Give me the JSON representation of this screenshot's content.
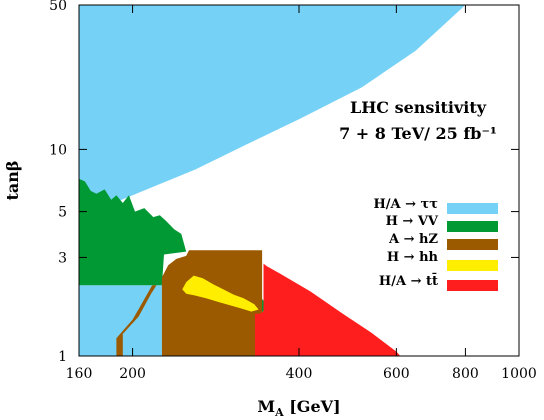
{
  "chart_data": {
    "type": "area",
    "title": "",
    "xlabel": "M_A [GeV]",
    "ylabel": "tanβ",
    "x_scale": "log",
    "y_scale": "log",
    "xlim": [
      160,
      1000
    ],
    "ylim": [
      1,
      50
    ],
    "x_ticks": [
      {
        "value": 160,
        "label": "160"
      },
      {
        "value": 200,
        "label": "200"
      },
      {
        "value": 400,
        "label": "400"
      },
      {
        "value": 600,
        "label": "600"
      },
      {
        "value": 800,
        "label": "800"
      },
      {
        "value": 1000,
        "label": "1000"
      }
    ],
    "y_ticks": [
      {
        "value": 1,
        "label": "1"
      },
      {
        "value": 3,
        "label": "3"
      },
      {
        "value": 5,
        "label": "5"
      },
      {
        "value": 10,
        "label": "10"
      },
      {
        "value": 50,
        "label": "50"
      }
    ],
    "annotation": {
      "line1": "LHC sensitivity",
      "line2": "7 + 8 TeV/ 25 fb⁻¹"
    },
    "legend_position": "right",
    "series": [
      {
        "name": "H/A → ττ",
        "color": "#75d2f6",
        "regions": [
          [
            [
              160,
              50
            ],
            [
              800,
              50
            ],
            [
              650,
              30
            ],
            [
              520,
              20
            ],
            [
              400,
              14
            ],
            [
              320,
              10.5
            ],
            [
              260,
              8
            ],
            [
              215,
              6.5
            ],
            [
              185,
              5.5
            ],
            [
              160,
              4.6
            ]
          ],
          [
            [
              160,
              1
            ],
            [
              226,
              1
            ],
            [
              226,
              2.2
            ],
            [
              196,
              2.2
            ],
            [
              160,
              2.2
            ]
          ]
        ]
      },
      {
        "name": "H → VV",
        "color": "#009933",
        "regions": [
          [
            [
              160,
              7.2
            ],
            [
              164,
              7
            ],
            [
              168,
              6.3
            ],
            [
              172,
              6.1
            ],
            [
              178,
              6.4
            ],
            [
              183,
              5.7
            ],
            [
              187,
              6.0
            ],
            [
              192,
              5.5
            ],
            [
              197,
              6.0
            ],
            [
              202,
              5.0
            ],
            [
              210,
              5.2
            ],
            [
              218,
              4.7
            ],
            [
              224,
              4.8
            ],
            [
              230,
              4.5
            ],
            [
              238,
              4.1
            ],
            [
              245,
              3.9
            ],
            [
              250,
              3.2
            ],
            [
              228,
              3.1
            ],
            [
              226,
              2.2
            ],
            [
              196,
              2.2
            ],
            [
              160,
              2.2
            ]
          ],
          [
            [
              248,
              2.95
            ],
            [
              258,
              3.0
            ],
            [
              268,
              2.8
            ],
            [
              280,
              2.55
            ],
            [
              292,
              2.4
            ],
            [
              305,
              2.3
            ],
            [
              318,
              2.15
            ],
            [
              330,
              2.05
            ],
            [
              340,
              1.95
            ],
            [
              345,
              1.85
            ],
            [
              348,
              1.68
            ],
            [
              340,
              1.6
            ],
            [
              333,
              1.82
            ],
            [
              322,
              1.92
            ],
            [
              308,
              2.02
            ],
            [
              290,
              2.18
            ],
            [
              272,
              2.38
            ],
            [
              258,
              2.55
            ],
            [
              250,
              2.62
            ],
            [
              245,
              2.7
            ]
          ]
        ]
      },
      {
        "name": "A → hZ",
        "color": "#9b5a00",
        "regions": [
          [
            [
              226,
              1
            ],
            [
              343,
              1
            ],
            [
              343,
              3.25
            ],
            [
              253,
              3.25
            ],
            [
              250,
              3.05
            ],
            [
              240,
              2.95
            ],
            [
              232,
              2.75
            ],
            [
              226,
              2.4
            ]
          ],
          [
            [
              187,
              1
            ],
            [
              192,
              1
            ],
            [
              192,
              1.28
            ],
            [
              205,
              1.55
            ],
            [
              216,
              2.0
            ],
            [
              221,
              2.2
            ],
            [
              217,
              2.2
            ],
            [
              208,
              1.8
            ],
            [
              200,
              1.5
            ],
            [
              187,
              1.22
            ]
          ]
        ]
      },
      {
        "name": "H → hh",
        "color": "#ffee00",
        "regions": [
          [
            [
              250,
              2.28
            ],
            [
              258,
              2.45
            ],
            [
              268,
              2.38
            ],
            [
              280,
              2.22
            ],
            [
              292,
              2.1
            ],
            [
              305,
              1.98
            ],
            [
              318,
              1.9
            ],
            [
              332,
              1.78
            ],
            [
              338,
              1.68
            ],
            [
              328,
              1.64
            ],
            [
              314,
              1.7
            ],
            [
              300,
              1.76
            ],
            [
              287,
              1.82
            ],
            [
              272,
              1.9
            ],
            [
              260,
              1.96
            ],
            [
              250,
              2.0
            ],
            [
              246,
              2.1
            ]
          ]
        ]
      },
      {
        "name": "H/A → tt̄",
        "color": "#ff1e1e",
        "regions": [
          [
            [
              333,
              1
            ],
            [
              610,
              1
            ],
            [
              600,
              1.05
            ],
            [
              540,
              1.3
            ],
            [
              480,
              1.6
            ],
            [
              420,
              2.05
            ],
            [
              370,
              2.5
            ],
            [
              350,
              2.72
            ],
            [
              345,
              2.8
            ],
            [
              345,
              1.65
            ],
            [
              340,
              1.6
            ],
            [
              333,
              1.6
            ]
          ]
        ]
      }
    ]
  }
}
